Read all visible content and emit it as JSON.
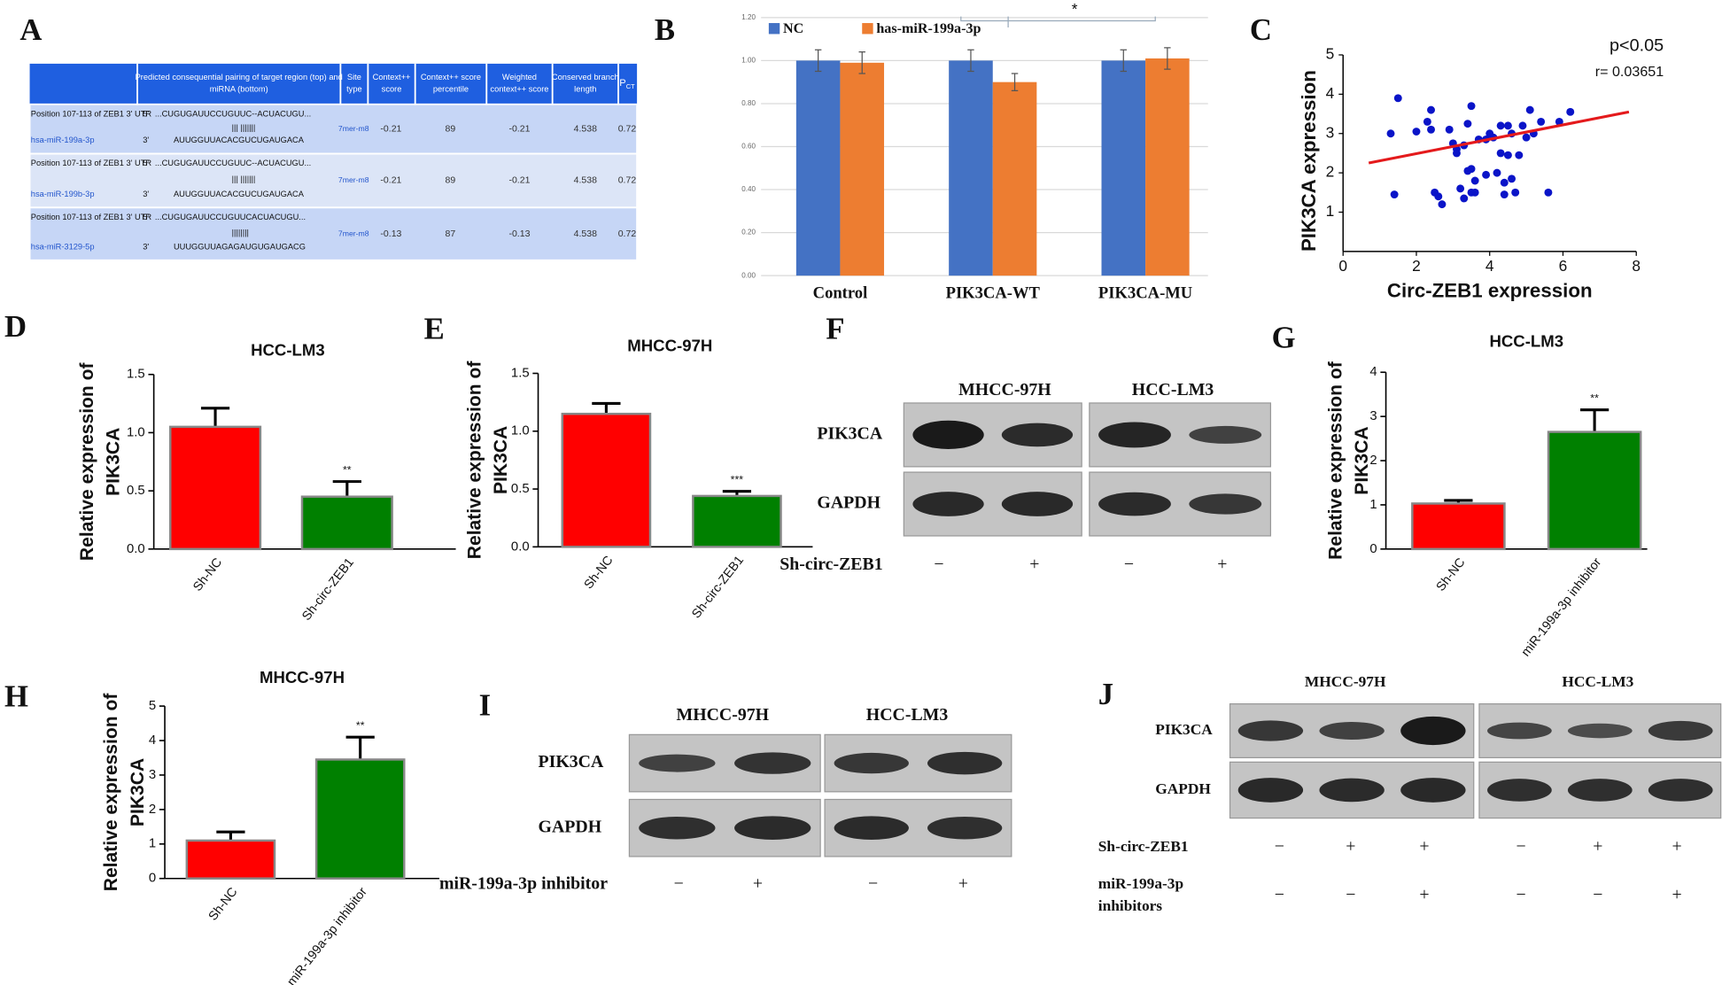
{
  "panel_a": {
    "panel": "A",
    "header": [
      [],
      [
        "Predicted consequential pairing of target region (top) and",
        "miRNA (bottom)"
      ],
      [
        "Site",
        "type"
      ],
      [
        "Context++",
        "score"
      ],
      [
        "Context++ score",
        "percentile"
      ],
      [
        "Weighted",
        "context++ score"
      ],
      [
        "Conserved branch",
        "length"
      ]
    ],
    "pct_header": {
      "main": "P",
      "sub": "CT"
    },
    "rows": [
      {
        "position": "Position 107-113 of ZEB1 3' UTR",
        "mirna": "hsa-miR-199a-3p",
        "end5": "5'",
        "end3": "3'",
        "top": "...CUGUGAUUCCUGUUC--ACUACUGU...",
        "pairing": "|||      |||||||",
        "bottom": "AUUGGUUACACGUCUGAUGACA",
        "cells": [
          "7mer-m8",
          -0.21,
          89,
          -0.21,
          4.538,
          0.72
        ]
      },
      {
        "position": "Position 107-113 of ZEB1 3' UTR",
        "mirna": "hsa-miR-199b-3p",
        "end5": "5'",
        "end3": "3'",
        "top": "...CUGUGAUUCCUGUUC--ACUACUGU...",
        "pairing": "|||      |||||||",
        "bottom": "AUUGGUUACACGUCUGAUGACA",
        "cells": [
          "7mer-m8",
          -0.21,
          89,
          -0.21,
          4.538,
          0.72
        ]
      },
      {
        "position": "Position 107-113 of ZEB1 3' UTR",
        "mirna": "hsa-miR-3129-5p",
        "end5": "5'",
        "end3": "3'",
        "top": "...CUGUGAUUCCUGUUCACUACUGU...",
        "pairing": "||||||||",
        "bottom": "UUUGGUUAGAGAUGUGAUGACG",
        "cells": [
          "7mer-m8",
          -0.13,
          87,
          -0.13,
          4.538,
          0.72
        ]
      }
    ]
  },
  "chart_data": [
    {
      "panel": "B",
      "type": "groupbar",
      "categories": [
        "Control",
        "PIK3CA-WT",
        "PIK3CA-MU"
      ],
      "series": [
        {
          "name": "NC",
          "color": "#4472c4",
          "values": [
            1.0,
            1.0,
            1.0
          ],
          "errors": [
            0.05,
            0.05,
            0.05
          ]
        },
        {
          "name": "has-miR-199a-3p",
          "color": "#ed7d31",
          "values": [
            0.99,
            0.9,
            1.01
          ],
          "errors": [
            0.05,
            0.04,
            0.05
          ]
        }
      ],
      "ylim": [
        0,
        1.2
      ],
      "yticks": [
        {
          "value": 0,
          "label": "0.00"
        },
        {
          "value": 0.2,
          "label": "0.20"
        },
        {
          "value": 0.4,
          "label": "0.40"
        },
        {
          "value": 0.6,
          "label": "0.60"
        },
        {
          "value": 0.8,
          "label": "0.80"
        },
        {
          "value": 1,
          "label": "1.00"
        },
        {
          "value": 1.2,
          "label": "1.20"
        }
      ],
      "grid": true,
      "annotation": "*"
    },
    {
      "panel": "C",
      "type": "scatter",
      "color": "#0a14c8",
      "x": [
        1.5,
        1.3,
        1.4,
        2.0,
        2.3,
        2.4,
        2.4,
        2.5,
        2.6,
        2.7,
        2.9,
        3.0,
        3.1,
        3.1,
        3.2,
        3.3,
        3.3,
        3.4,
        3.5,
        3.4,
        3.5,
        3.5,
        3.6,
        3.6,
        3.7,
        3.9,
        3.9,
        4.0,
        4.1,
        4.2,
        4.3,
        4.3,
        4.4,
        4.4,
        4.5,
        4.5,
        4.6,
        4.6,
        4.7,
        4.8,
        5.0,
        4.9,
        5.1,
        5.2,
        5.6,
        5.9,
        6.2,
        5.4
      ],
      "y": [
        3.9,
        3.0,
        1.45,
        3.05,
        3.3,
        3.1,
        3.6,
        1.5,
        1.4,
        1.2,
        3.1,
        2.75,
        2.5,
        2.6,
        1.6,
        1.35,
        2.7,
        2.05,
        3.7,
        3.25,
        1.5,
        2.1,
        1.8,
        1.5,
        2.85,
        2.85,
        1.95,
        3.0,
        2.9,
        2.0,
        3.2,
        2.5,
        1.75,
        1.45,
        3.2,
        2.45,
        1.85,
        3.0,
        1.5,
        2.45,
        2.9,
        3.2,
        3.6,
        3.0,
        1.5,
        3.3,
        3.55,
        3.3
      ],
      "fit": {
        "x": [
          0.7,
          7.8
        ],
        "y": [
          2.25,
          3.55
        ],
        "color": "#e41a1c"
      },
      "xlim": [
        0,
        8
      ],
      "ylim": [
        0,
        5
      ],
      "xticks": [
        0,
        2,
        4,
        6,
        8
      ],
      "yticks": [
        1,
        2,
        3,
        4,
        5
      ],
      "xlabel": "Circ-ZEB1 expression",
      "ylabel": "PIK3CA expression",
      "annotations": [
        "p<0.05",
        "r= 0.03651"
      ]
    },
    {
      "panel": "D",
      "type": "bar",
      "title": "HCC-LM3",
      "categories": [
        "Sh-NC",
        "Sh-circ-ZEB1"
      ],
      "values": [
        1.05,
        0.45
      ],
      "errors": [
        0.16,
        0.13
      ],
      "colors": [
        "#ff0000",
        "#008000"
      ],
      "ylim": [
        0,
        1.5
      ],
      "yticks": [
        {
          "value": 0,
          "label": "0.0"
        },
        0.5,
        {
          "value": 1,
          "label": "1.0"
        },
        1.5
      ],
      "ylabel": [
        "Relative expression of",
        "PIK3CA"
      ],
      "annotations": [
        null,
        "**"
      ]
    },
    {
      "panel": "E",
      "type": "bar",
      "title": "MHCC-97H",
      "categories": [
        "Sh-NC",
        "Sh-circ-ZEB1"
      ],
      "values": [
        1.15,
        0.44
      ],
      "errors": [
        0.09,
        0.04
      ],
      "colors": [
        "#ff0000",
        "#008000"
      ],
      "ylim": [
        0,
        1.5
      ],
      "yticks": [
        {
          "value": 0,
          "label": "0.0"
        },
        0.5,
        {
          "value": 1,
          "label": "1.0"
        },
        1.5
      ],
      "ylabel": [
        "Relative expression of",
        "PIK3CA"
      ],
      "annotations": [
        null,
        "***"
      ]
    },
    {
      "panel": "G",
      "type": "bar",
      "title": "HCC-LM3",
      "categories": [
        "Sh-NC",
        "miR-199a-3p inhibitor"
      ],
      "values": [
        1.03,
        2.65
      ],
      "errors": [
        0.07,
        0.5
      ],
      "colors": [
        "#ff0000",
        "#008000"
      ],
      "ylim": [
        0,
        4
      ],
      "yticks": [
        0,
        1,
        2,
        3,
        4
      ],
      "ylabel": [
        "Relative expression of",
        "PIK3CA"
      ],
      "annotations": [
        null,
        "**"
      ]
    },
    {
      "panel": "H",
      "type": "bar",
      "title": "MHCC-97H",
      "categories": [
        "Sh-NC",
        "miR-199a-3p inhibitor"
      ],
      "values": [
        1.1,
        3.45
      ],
      "errors": [
        0.25,
        0.65
      ],
      "colors": [
        "#ff0000",
        "#008000"
      ],
      "ylim": [
        0,
        5
      ],
      "yticks": [
        0,
        1,
        2,
        3,
        4,
        5
      ],
      "ylabel": [
        "Relative expression of",
        "PIK3CA"
      ],
      "annotations": [
        null,
        "**"
      ]
    }
  ],
  "blots": [
    {
      "panel": "F",
      "groups": [
        "MHCC-97H",
        "HCC-LM3"
      ],
      "rows": [
        "PIK3CA",
        "GAPDH"
      ],
      "treatments": [
        {
          "name": [
            "Sh-circ-ZEB1"
          ],
          "signs": [
            "−",
            "+",
            "−",
            "+"
          ]
        }
      ]
    },
    {
      "panel": "I",
      "groups": [
        "MHCC-97H",
        "HCC-LM3"
      ],
      "rows": [
        "PIK3CA",
        "GAPDH"
      ],
      "treatments": [
        {
          "name": [
            "miR-199a-3p inhibitor"
          ],
          "signs": [
            "−",
            "+",
            "−",
            "+"
          ]
        }
      ]
    },
    {
      "panel": "J",
      "groups": [
        "MHCC-97H",
        "HCC-LM3"
      ],
      "rows": [
        "PIK3CA",
        "GAPDH"
      ],
      "treatments": [
        {
          "name": [
            "Sh-circ-ZEB1"
          ],
          "signs": [
            "−",
            "+",
            "+",
            "−",
            "+",
            "+"
          ]
        },
        {
          "name": [
            "miR-199a-3p",
            "inhibitors"
          ],
          "signs": [
            "−",
            "−",
            "+",
            "−",
            "−",
            "+"
          ]
        }
      ]
    }
  ]
}
